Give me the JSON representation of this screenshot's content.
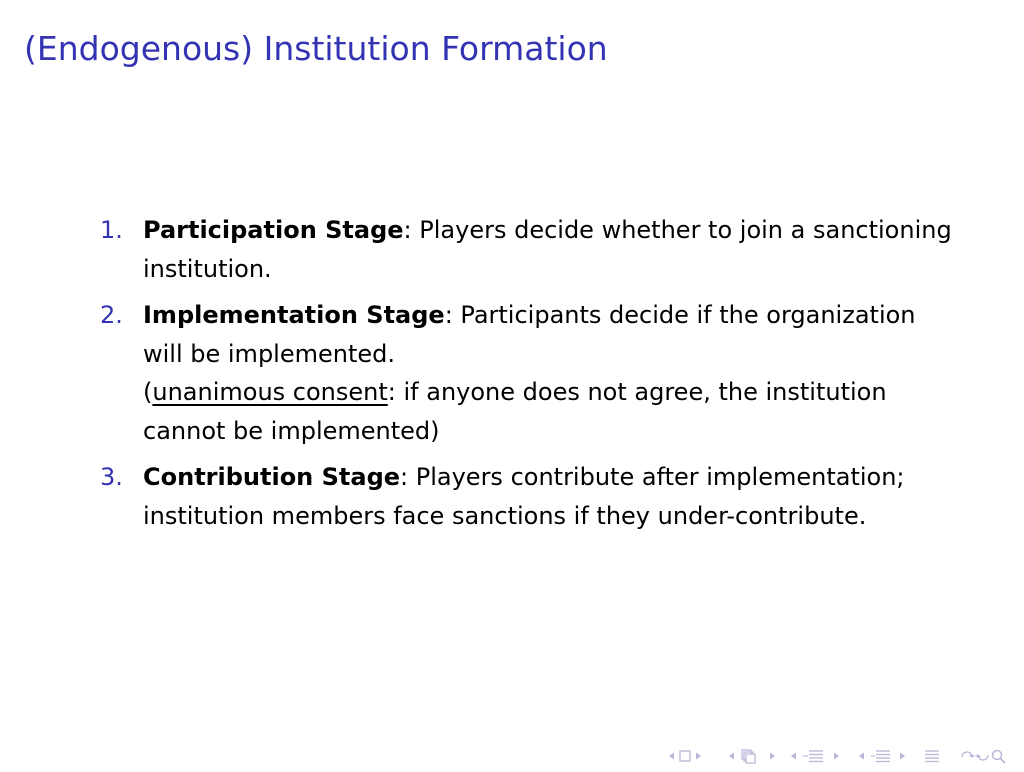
{
  "slide": {
    "title": "(Endogenous) Institution Formation"
  },
  "stages": [
    {
      "number": "1.",
      "name": "Participation Stage",
      "text": ": Players decide whether to join a sanctioning institution."
    },
    {
      "number": "2.",
      "name": "Implementation Stage",
      "text": ": Participants decide if the organization will be implemented.",
      "note_open": "(",
      "note_term": "unanimous consent",
      "note_rest": ": if anyone does not agree, the institution cannot be implemented)"
    },
    {
      "number": "3.",
      "name": "Contribution Stage",
      "text": ": Players contribute after implementation; institution members face sanctions if they under-contribute."
    }
  ],
  "navigation": {
    "icons": [
      "first-slide-icon",
      "frame-icon",
      "prev-subsection-icon",
      "subsection-icon",
      "prev-section-icon",
      "section-icon",
      "presentation-icon",
      "search-icon"
    ],
    "color": "#b7b7d6"
  },
  "colors": {
    "title": "#3333b3",
    "enumeration": "#3333b3",
    "text": "#000000"
  }
}
